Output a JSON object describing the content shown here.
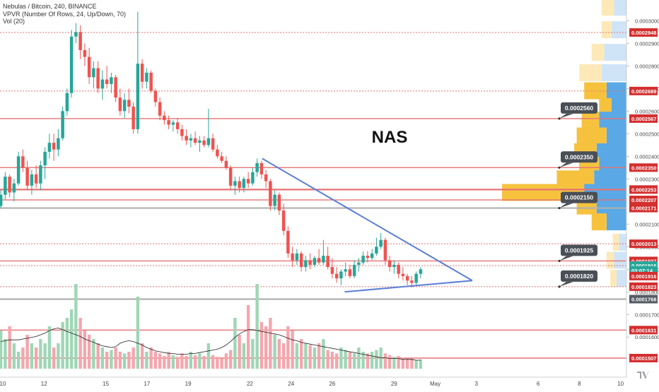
{
  "legend": {
    "line1": "Nebulas / Bitcoin, 240, BINANCE",
    "line2": "VPVR (Number Of Rows, 24, Up/Down, 70)",
    "line3": "Vol (20)"
  },
  "annotation_text": "NAS",
  "colors": {
    "up": "#26a69a",
    "down": "#ef5350",
    "trendline": "#5b7fd6",
    "hline_red": "#e57373",
    "hline_gray": "#b0b0b0",
    "vol_up": "#9fd6b6",
    "vol_down": "#f4a6ad",
    "vpvr_up": "#5aa9e6",
    "vpvr_down": "#f6c23e",
    "vpvr_outside_up": "#cfe4f7",
    "vpvr_outside_down": "#fde9b8",
    "callout_bg": "#4a4f56",
    "badge_red": "#d32f2f",
    "badge_green": "#26a69a",
    "badge_gray": "#555b63"
  },
  "icons": {
    "logo": "tradingview-logo-icon"
  },
  "chart_data": {
    "type": "candlestick",
    "title": "Nebulas / Bitcoin, 240, BINANCE",
    "y_axis": {
      "min": 0.000148,
      "max": 0.00031,
      "ticks": [
        "0.0003000",
        "0.0002900",
        "0.0002800",
        "0.0002700",
        "0.0002600",
        "0.0002500",
        "0.0002400",
        "0.0002300",
        "0.0002100",
        "0.0002000",
        "0.0001900",
        "0.0001800",
        "0.0001700",
        "0.0001600"
      ]
    },
    "x_axis": {
      "ticks": [
        "10",
        "12",
        "15",
        "17",
        "19",
        "22",
        "24",
        "26",
        "29",
        "May",
        "3",
        "6",
        "8",
        "10"
      ],
      "tick_day": [
        10,
        12,
        15,
        17,
        19,
        22,
        24,
        26,
        29,
        31,
        33,
        36,
        38,
        40
      ]
    },
    "candles_ohlc": [
      [
        0.000218,
        0.000225,
        0.000217,
        0.000223
      ],
      [
        0.000223,
        0.000233,
        0.000221,
        0.000231
      ],
      [
        0.000231,
        0.000232,
        0.000222,
        0.000224
      ],
      [
        0.000224,
        0.00023,
        0.00022,
        0.000228
      ],
      [
        0.000228,
        0.000242,
        0.000227,
        0.00024
      ],
      [
        0.00024,
        0.000243,
        0.000233,
        0.000235
      ],
      [
        0.000235,
        0.000238,
        0.000225,
        0.000227
      ],
      [
        0.000227,
        0.000234,
        0.000223,
        0.000232
      ],
      [
        0.000232,
        0.000236,
        0.000226,
        0.000228
      ],
      [
        0.000228,
        0.000238,
        0.000225,
        0.000236
      ],
      [
        0.000236,
        0.000244,
        0.00023,
        0.000242
      ],
      [
        0.000242,
        0.00025,
        0.000239,
        0.000246
      ],
      [
        0.000246,
        0.00025,
        0.000238,
        0.000243
      ],
      [
        0.000243,
        0.000252,
        0.00024,
        0.000248
      ],
      [
        0.000248,
        0.000262,
        0.000247,
        0.00026
      ],
      [
        0.00026,
        0.00027,
        0.000258,
        0.000268
      ],
      [
        0.000268,
        0.000296,
        0.000266,
        0.000293
      ],
      [
        0.000293,
        0.000299,
        0.00029,
        0.000295
      ],
      [
        0.000295,
        0.000298,
        0.000283,
        0.000287
      ],
      [
        0.000287,
        0.00029,
        0.00028,
        0.000284
      ],
      [
        0.000284,
        0.000288,
        0.000272,
        0.000275
      ],
      [
        0.000275,
        0.000282,
        0.00027,
        0.000279
      ],
      [
        0.000279,
        0.000282,
        0.000268,
        0.00027
      ],
      [
        0.00027,
        0.000278,
        0.000265,
        0.000274
      ],
      [
        0.000274,
        0.00028,
        0.00027,
        0.000272
      ],
      [
        0.000272,
        0.000277,
        0.000268,
        0.000275
      ],
      [
        0.000275,
        0.000276,
        0.000264,
        0.000266
      ],
      [
        0.000266,
        0.00027,
        0.000258,
        0.00026
      ],
      [
        0.00026,
        0.000268,
        0.000257,
        0.000265
      ],
      [
        0.000265,
        0.00027,
        0.000259,
        0.000262
      ],
      [
        0.000262,
        0.000264,
        0.00025,
        0.000252
      ],
      [
        0.000252,
        0.000304,
        0.00025,
        0.000281
      ],
      [
        0.000281,
        0.000283,
        0.00027,
        0.000273
      ],
      [
        0.000273,
        0.000279,
        0.00027,
        0.000277
      ],
      [
        0.000277,
        0.000278,
        0.000268,
        0.000269
      ],
      [
        0.000269,
        0.00027,
        0.000262,
        0.000264
      ],
      [
        0.000264,
        0.000266,
        0.000256,
        0.000258
      ],
      [
        0.000258,
        0.00026,
        0.000254,
        0.000256
      ],
      [
        0.000256,
        0.000258,
        0.000252,
        0.000254
      ],
      [
        0.000254,
        0.000256,
        0.000251,
        0.000255
      ],
      [
        0.000255,
        0.000257,
        0.00025,
        0.000252
      ],
      [
        0.000252,
        0.000254,
        0.000247,
        0.000249
      ],
      [
        0.000249,
        0.000252,
        0.000245,
        0.000247
      ],
      [
        0.000247,
        0.00025,
        0.000244,
        0.000248
      ],
      [
        0.000248,
        0.000251,
        0.000245,
        0.000246
      ],
      [
        0.000246,
        0.000249,
        0.000242,
        0.000247
      ],
      [
        0.000247,
        0.000249,
        0.000244,
        0.000245
      ],
      [
        0.000245,
        0.000261,
        0.000244,
        0.000248
      ],
      [
        0.000248,
        0.00025,
        0.000242,
        0.000243
      ],
      [
        0.000243,
        0.000245,
        0.000239,
        0.00024
      ],
      [
        0.00024,
        0.000242,
        0.000237,
        0.000238
      ],
      [
        0.000238,
        0.00024,
        0.000234,
        0.000235
      ],
      [
        0.000235,
        0.000236,
        0.000225,
        0.000227
      ],
      [
        0.000227,
        0.000231,
        0.000223,
        0.000229
      ],
      [
        0.000229,
        0.000231,
        0.000224,
        0.000226
      ],
      [
        0.000226,
        0.000231,
        0.000224,
        0.00023
      ],
      [
        0.00023,
        0.000233,
        0.000226,
        0.000228
      ],
      [
        0.000228,
        0.000235,
        0.000227,
        0.000233
      ],
      [
        0.000233,
        0.000239,
        0.000231,
        0.000237
      ],
      [
        0.000237,
        0.000238,
        0.00023,
        0.000232
      ],
      [
        0.000232,
        0.000234,
        0.000226,
        0.000229
      ],
      [
        0.000229,
        0.00023,
        0.000216,
        0.000218
      ],
      [
        0.000218,
        0.000225,
        0.000216,
        0.000223
      ],
      [
        0.000223,
        0.000224,
        0.000214,
        0.000216
      ],
      [
        0.000216,
        0.000219,
        0.000205,
        0.000207
      ],
      [
        0.000207,
        0.000209,
        0.000195,
        0.000197
      ],
      [
        0.000197,
        0.0002,
        0.000191,
        0.000194
      ],
      [
        0.000194,
        0.000199,
        0.000192,
        0.000197
      ],
      [
        0.000197,
        0.000198,
        0.000189,
        0.000191
      ],
      [
        0.000191,
        0.000196,
        0.000189,
        0.000194
      ],
      [
        0.000194,
        0.000197,
        0.00019,
        0.000192
      ],
      [
        0.000192,
        0.000196,
        0.000191,
        0.000195
      ],
      [
        0.000195,
        0.000199,
        0.000192,
        0.000193
      ],
      [
        0.000193,
        0.000203,
        0.000192,
        0.000196
      ],
      [
        0.000196,
        0.0002,
        0.00019,
        0.000191
      ],
      [
        0.000191,
        0.000195,
        0.000186,
        0.000188
      ],
      [
        0.000188,
        0.000191,
        0.000184,
        0.000186
      ],
      [
        0.000186,
        0.00019,
        0.000183,
        0.000189
      ],
      [
        0.000189,
        0.000193,
        0.000187,
        0.00019
      ],
      [
        0.00019,
        0.000192,
        0.000186,
        0.000187
      ],
      [
        0.000187,
        0.000194,
        0.000186,
        0.000192
      ],
      [
        0.000192,
        0.000195,
        0.000189,
        0.000193
      ],
      [
        0.000193,
        0.000198,
        0.000192,
        0.000196
      ],
      [
        0.000196,
        0.000198,
        0.000193,
        0.000195
      ],
      [
        0.000195,
        0.000199,
        0.000194,
        0.000197
      ],
      [
        0.000197,
        0.000204,
        0.000196,
        0.0002
      ],
      [
        0.0002,
        0.000206,
        0.000199,
        0.000203
      ],
      [
        0.000203,
        0.000204,
        0.000192,
        0.000194
      ],
      [
        0.000194,
        0.000196,
        0.000189,
        0.000191
      ],
      [
        0.000191,
        0.000194,
        0.000188,
        0.000192
      ],
      [
        0.000192,
        0.000193,
        0.000186,
        0.000188
      ],
      [
        0.000188,
        0.000191,
        0.000185,
        0.000187
      ],
      [
        0.000187,
        0.000188,
        0.000183,
        0.000185
      ],
      [
        0.000185,
        0.000187,
        0.000182,
        0.000184
      ],
      [
        0.000184,
        0.000189,
        0.000183,
        0.000188
      ],
      [
        0.000188,
        0.000191,
        0.000186,
        0.00019
      ]
    ],
    "volume_rel": [
      0.45,
      0.35,
      0.5,
      0.3,
      0.2,
      0.25,
      0.4,
      0.3,
      0.25,
      0.35,
      0.3,
      0.5,
      0.25,
      0.3,
      0.55,
      0.6,
      0.7,
      1.0,
      0.6,
      0.45,
      0.4,
      0.35,
      0.3,
      0.25,
      0.2,
      0.22,
      0.25,
      0.2,
      0.18,
      0.2,
      0.25,
      0.85,
      0.3,
      0.2,
      0.25,
      0.2,
      0.18,
      0.15,
      0.2,
      0.16,
      0.14,
      0.18,
      0.15,
      0.2,
      0.16,
      0.18,
      0.15,
      0.3,
      0.16,
      0.14,
      0.12,
      0.18,
      0.22,
      0.6,
      0.4,
      0.3,
      0.75,
      0.35,
      1.0,
      0.55,
      0.5,
      0.6,
      0.4,
      0.35,
      0.3,
      0.5,
      0.45,
      0.3,
      0.35,
      0.3,
      0.28,
      0.25,
      0.3,
      0.35,
      0.22,
      0.2,
      0.18,
      0.25,
      0.22,
      0.2,
      0.18,
      0.25,
      0.2,
      0.18,
      0.2,
      0.22,
      0.25,
      0.18,
      0.16,
      0.14,
      0.15,
      0.13,
      0.12,
      0.12,
      0.1,
      0.11
    ],
    "volume_ma_rel": [
      0.32,
      0.33,
      0.34,
      0.34,
      0.34,
      0.35,
      0.36,
      0.37,
      0.38,
      0.4,
      0.42,
      0.45,
      0.47,
      0.48,
      0.46,
      0.44,
      0.42,
      0.4,
      0.38,
      0.35,
      0.33,
      0.31,
      0.29,
      0.27,
      0.26,
      0.25,
      0.26,
      0.3,
      0.32,
      0.33,
      0.32,
      0.3,
      0.28,
      0.25,
      0.23,
      0.21,
      0.2,
      0.19,
      0.18,
      0.18,
      0.17,
      0.17,
      0.17,
      0.18,
      0.18,
      0.19,
      0.2,
      0.21,
      0.22,
      0.23,
      0.25,
      0.28,
      0.32,
      0.37,
      0.41,
      0.44,
      0.46,
      0.46,
      0.45,
      0.44,
      0.43,
      0.42,
      0.41,
      0.4,
      0.38,
      0.36,
      0.34,
      0.33,
      0.31,
      0.3,
      0.29,
      0.28,
      0.27,
      0.26,
      0.25,
      0.24,
      0.23,
      0.22,
      0.21,
      0.2,
      0.19,
      0.18,
      0.17,
      0.16,
      0.15,
      0.14,
      0.13,
      0.13,
      0.12,
      0.12,
      0.12,
      0.11,
      0.11,
      0.11,
      0.1,
      0.1
    ],
    "horizontal_lines": [
      {
        "price": 0.0002948,
        "style": "dotted",
        "color": "red"
      },
      {
        "price": 0.0002689,
        "style": "dotted",
        "color": "red"
      },
      {
        "price": 0.0002567,
        "style": "solid",
        "color": "red"
      },
      {
        "price": 0.000235,
        "style": "solid",
        "color": "red"
      },
      {
        "price": 0.0002253,
        "style": "solid-bold",
        "color": "red"
      },
      {
        "price": 0.0002207,
        "style": "solid",
        "color": "red"
      },
      {
        "price": 0.0002171,
        "style": "solid-bold",
        "color": "gray"
      },
      {
        "price": 0.0002013,
        "style": "dotted",
        "color": "red"
      },
      {
        "price": 0.0001937,
        "style": "solid",
        "color": "red"
      },
      {
        "price": 0.0001916,
        "style": "dotted",
        "color": "red"
      },
      {
        "price": 0.0001823,
        "style": "dotted",
        "color": "red"
      },
      {
        "price": 0.0001768,
        "style": "solid-bold",
        "color": "gray"
      },
      {
        "price": 0.0001631,
        "style": "solid",
        "color": "red"
      },
      {
        "price": 0.0001507,
        "style": "solid",
        "color": "red"
      }
    ],
    "price_badges": [
      {
        "label": "0.0002948",
        "price": 0.0002948,
        "kind": "red"
      },
      {
        "label": "0.0002689",
        "price": 0.0002689,
        "kind": "red"
      },
      {
        "label": "0.0002567",
        "price": 0.0002567,
        "kind": "red"
      },
      {
        "label": "0.0002350",
        "price": 0.000235,
        "kind": "red"
      },
      {
        "label": "0.0002253",
        "price": 0.0002253,
        "kind": "red"
      },
      {
        "label": "0.0002207",
        "price": 0.0002207,
        "kind": "red"
      },
      {
        "label": "0.0002171",
        "price": 0.0002171,
        "kind": "red"
      },
      {
        "label": "0.0002013",
        "price": 0.0002013,
        "kind": "red"
      },
      {
        "label": "0.0001937",
        "price": 0.0001937,
        "kind": "red"
      },
      {
        "label": "0.0001916",
        "price": 0.0001916,
        "kind": "green"
      },
      {
        "label": "03:07:14",
        "price": 0.0001895,
        "kind": "green"
      },
      {
        "label": "0.0001916",
        "price": 0.000187,
        "kind": "red"
      },
      {
        "label": "0.0001823",
        "price": 0.0001823,
        "kind": "red"
      },
      {
        "label": "0.0001768",
        "price": 0.0001768,
        "kind": "gray"
      },
      {
        "label": "0.0001631",
        "price": 0.0001631,
        "kind": "red"
      },
      {
        "label": "0.0001507",
        "price": 0.0001507,
        "kind": "red"
      }
    ],
    "callouts": [
      {
        "label": "0.0002560",
        "price": 0.0002567
      },
      {
        "label": "0.0002350",
        "price": 0.000235
      },
      {
        "label": "0.0002150",
        "price": 0.0002171
      },
      {
        "label": "0.0001925",
        "price": 0.0001937
      },
      {
        "label": "0.0001820",
        "price": 0.0001823
      }
    ],
    "trendlines": [
      {
        "from": {
          "day": 22.6,
          "price": 0.000239
        },
        "to": {
          "day": 32.8,
          "price": 0.000185
        }
      },
      {
        "from": {
          "day": 26.6,
          "price": 0.00018
        },
        "to": {
          "day": 32.8,
          "price": 0.000185
        }
      }
    ],
    "vpvr": [
      {
        "price": 0.000306,
        "up": 0.1,
        "down": 0.1,
        "outside": true
      },
      {
        "price": 0.000296,
        "up": 0.12,
        "down": 0.08,
        "outside": true
      },
      {
        "price": 0.000286,
        "up": 0.18,
        "down": 0.1,
        "outside": true
      },
      {
        "price": 0.000277,
        "up": 0.2,
        "down": 0.18,
        "outside": true
      },
      {
        "price": 0.000269,
        "up": 0.16,
        "down": 0.18,
        "outside": false
      },
      {
        "price": 0.000262,
        "up": 0.12,
        "down": 0.1,
        "outside": false
      },
      {
        "price": 0.000256,
        "up": 0.22,
        "down": 0.14,
        "outside": false
      },
      {
        "price": 0.000249,
        "up": 0.16,
        "down": 0.24,
        "outside": false
      },
      {
        "price": 0.000242,
        "up": 0.24,
        "down": 0.18,
        "outside": false
      },
      {
        "price": 0.000236,
        "up": 0.22,
        "down": 0.16,
        "outside": false
      },
      {
        "price": 0.00023,
        "up": 0.26,
        "down": 0.3,
        "outside": false
      },
      {
        "price": 0.000224,
        "up": 0.34,
        "down": 0.66,
        "outside": false
      },
      {
        "price": 0.000218,
        "up": 0.24,
        "down": 0.16,
        "outside": false
      },
      {
        "price": 0.000211,
        "up": 0.16,
        "down": 0.12,
        "outside": false
      },
      {
        "price": 0.000202,
        "up": 0.06,
        "down": 0.05,
        "outside": true
      },
      {
        "price": 0.000194,
        "up": 0.1,
        "down": 0.06,
        "outside": true
      },
      {
        "price": 0.000186,
        "up": 0.08,
        "down": 0.05,
        "outside": true
      }
    ]
  }
}
